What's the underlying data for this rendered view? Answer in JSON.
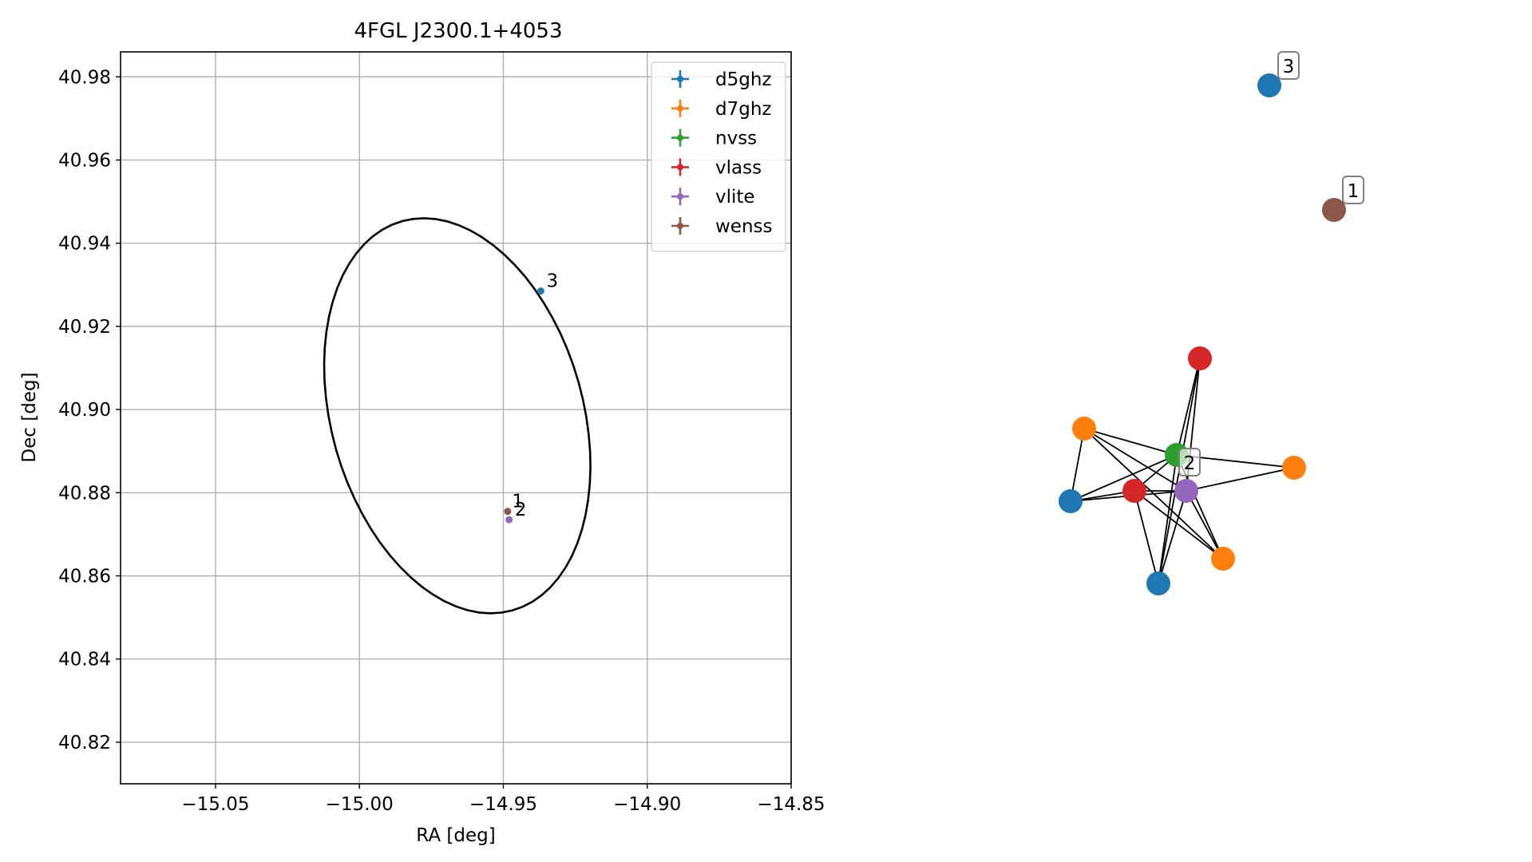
{
  "chart_data": [
    {
      "type": "scatter",
      "title": "4FGL J2300.1+4053",
      "xlabel": "RA [deg]",
      "ylabel": "Dec [deg]",
      "xlim": [
        -15.083,
        -14.85
      ],
      "ylim": [
        40.81,
        40.986
      ],
      "grid": true,
      "legend_position": "top-right",
      "xticks": [
        {
          "value": -15.05,
          "label": "−15.05"
        },
        {
          "value": -15.0,
          "label": "−15.00"
        },
        {
          "value": -14.95,
          "label": "−14.95"
        },
        {
          "value": -14.9,
          "label": "−14.90"
        },
        {
          "value": -14.85,
          "label": "−14.85"
        }
      ],
      "yticks": [
        {
          "value": 40.82,
          "label": "40.82"
        },
        {
          "value": 40.84,
          "label": "40.84"
        },
        {
          "value": 40.86,
          "label": "40.86"
        },
        {
          "value": 40.88,
          "label": "40.88"
        },
        {
          "value": 40.9,
          "label": "40.90"
        },
        {
          "value": 40.92,
          "label": "40.92"
        },
        {
          "value": 40.94,
          "label": "40.94"
        },
        {
          "value": 40.96,
          "label": "40.96"
        },
        {
          "value": 40.98,
          "label": "40.98"
        }
      ],
      "series": [
        {
          "name": "d5ghz",
          "color": "#1f77b4",
          "points": [
            {
              "x": -14.937,
              "y": 40.9285
            }
          ]
        },
        {
          "name": "d7ghz",
          "color": "#ff7f0e",
          "points": []
        },
        {
          "name": "nvss",
          "color": "#2ca02c",
          "points": []
        },
        {
          "name": "vlass",
          "color": "#d62728",
          "points": []
        },
        {
          "name": "vlite",
          "color": "#9467bd",
          "points": [
            {
              "x": -14.948,
              "y": 40.8735
            }
          ]
        },
        {
          "name": "wenss",
          "color": "#8c564b",
          "points": [
            {
              "x": -14.9485,
              "y": 40.8755
            }
          ]
        }
      ],
      "annotations": [
        {
          "text": "1",
          "x": -14.947,
          "y": 40.8765
        },
        {
          "text": "2",
          "x": -14.946,
          "y": 40.8745
        },
        {
          "text": "3",
          "x": -14.935,
          "y": 40.9295
        }
      ],
      "ellipse": {
        "center_x": -14.966,
        "center_y": 40.8985,
        "semi_major": 0.0525,
        "semi_minor": 0.0405,
        "angle_deg": -48,
        "color": "#000000"
      }
    },
    {
      "type": "network",
      "nodes": [
        {
          "id": "n1",
          "color": "#1f77b4",
          "label": "3"
        },
        {
          "id": "n2",
          "color": "#8c564b",
          "label": "1"
        },
        {
          "id": "n3",
          "color": "#d62728",
          "label": ""
        },
        {
          "id": "n4",
          "color": "#ff7f0e",
          "label": ""
        },
        {
          "id": "n5",
          "color": "#2ca02c",
          "label": "2"
        },
        {
          "id": "n6",
          "color": "#ff7f0e",
          "label": ""
        },
        {
          "id": "n7",
          "color": "#1f77b4",
          "label": ""
        },
        {
          "id": "n8",
          "color": "#d62728",
          "label": ""
        },
        {
          "id": "n9",
          "color": "#9467bd",
          "label": ""
        },
        {
          "id": "n10",
          "color": "#ff7f0e",
          "label": ""
        },
        {
          "id": "n11",
          "color": "#1f77b4",
          "label": ""
        }
      ],
      "edges": [
        [
          "n4",
          "n7"
        ],
        [
          "n4",
          "n5"
        ],
        [
          "n4",
          "n9"
        ],
        [
          "n4",
          "n10"
        ],
        [
          "n7",
          "n8"
        ],
        [
          "n7",
          "n9"
        ],
        [
          "n7",
          "n5"
        ],
        [
          "n8",
          "n9"
        ],
        [
          "n8",
          "n11"
        ],
        [
          "n8",
          "n10"
        ],
        [
          "n8",
          "n5"
        ],
        [
          "n5",
          "n6"
        ],
        [
          "n5",
          "n11"
        ],
        [
          "n5",
          "n10"
        ],
        [
          "n9",
          "n6"
        ],
        [
          "n9",
          "n11"
        ],
        [
          "n9",
          "n10"
        ],
        [
          "n9",
          "n3"
        ],
        [
          "n11",
          "n3"
        ],
        [
          "n3",
          "n5"
        ]
      ]
    }
  ]
}
